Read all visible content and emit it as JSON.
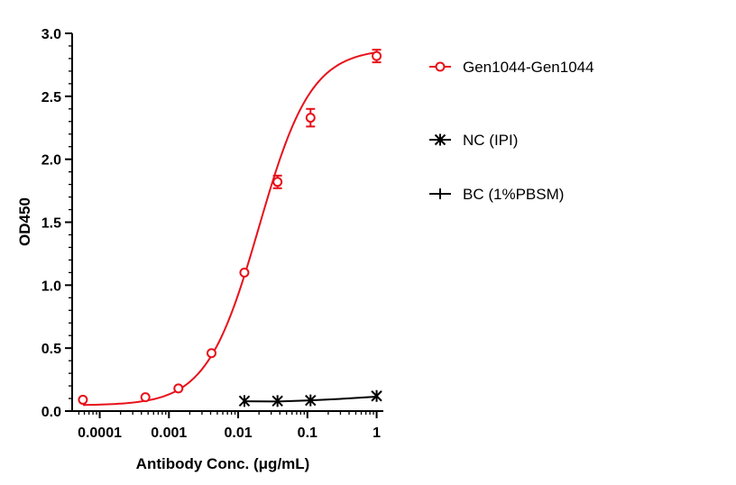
{
  "chart_data": {
    "type": "scatter",
    "title": "",
    "xlabel": "Antibody Conc. (μg/mL)",
    "ylabel": "OD450",
    "x_scale": "log",
    "xlim": [
      4e-05,
      1.25
    ],
    "ylim": [
      0,
      3.0
    ],
    "x_ticks": [
      {
        "value": 0.0001,
        "label": "0.0001"
      },
      {
        "value": 0.001,
        "label": "0.001"
      },
      {
        "value": 0.01,
        "label": "0.01"
      },
      {
        "value": 0.1,
        "label": "0.1"
      },
      {
        "value": 1,
        "label": "1"
      }
    ],
    "y_ticks": [
      {
        "value": 0.0,
        "label": "0.0"
      },
      {
        "value": 0.5,
        "label": "0.5"
      },
      {
        "value": 1.0,
        "label": "1.0"
      },
      {
        "value": 1.5,
        "label": "1.5"
      },
      {
        "value": 2.0,
        "label": "2.0"
      },
      {
        "value": 2.5,
        "label": "2.5"
      },
      {
        "value": 3.0,
        "label": "3.0"
      }
    ],
    "grid": false,
    "legend_position": "right",
    "series": [
      {
        "name": "Gen1044-Gen1044",
        "color": "#e8101a",
        "marker": "open-circle",
        "x": [
          5.72e-05,
          0.000457,
          0.00137,
          0.00412,
          0.0123,
          0.037,
          0.111,
          1.0
        ],
        "y": [
          0.09,
          0.11,
          0.18,
          0.46,
          1.1,
          1.82,
          2.33,
          2.82
        ],
        "err": [
          0.01,
          0.01,
          0.01,
          0.015,
          0.02,
          0.05,
          0.07,
          0.05
        ],
        "fit": {
          "bottom": 0.045,
          "top": 2.88,
          "ec50": 0.02,
          "hill": 1.15
        }
      },
      {
        "name": "NC (IPI)",
        "color": "#000000",
        "marker": "x-star",
        "x": [
          0.0123,
          0.037,
          0.111,
          1.0
        ],
        "y": [
          0.08,
          0.08,
          0.085,
          0.12
        ],
        "curve": [
          [
            0.0123,
            0.078
          ],
          [
            0.037,
            0.076
          ],
          [
            0.111,
            0.085
          ],
          [
            0.3,
            0.097
          ],
          [
            1.0,
            0.115
          ]
        ]
      },
      {
        "name": "BC (1%PBSM)",
        "color": "#000000",
        "marker": "plus",
        "x": [],
        "y": []
      }
    ]
  }
}
